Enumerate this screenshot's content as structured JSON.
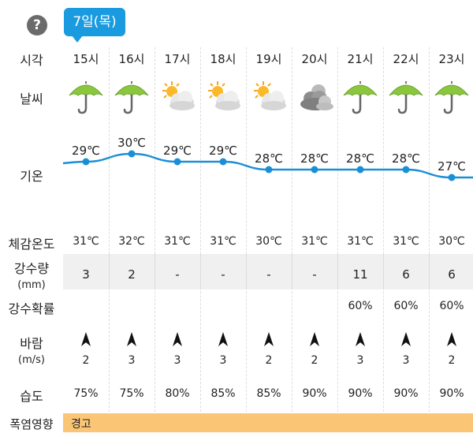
{
  "help_icon": "?",
  "date_label": "7일(목)",
  "row_labels": {
    "hour": "시각",
    "weather": "날씨",
    "temp": "기온",
    "feels": "체감온도",
    "precip": "강수량",
    "precip_unit": "(mm)",
    "precip_prob": "강수확률",
    "wind": "바람",
    "wind_unit": "(m/s)",
    "humidity": "습도",
    "heat": "폭염영향"
  },
  "heat_warning": "경고",
  "columns": [
    {
      "hour": "15시",
      "weather": "umbrella-icon",
      "temp": 29,
      "temp_label": "29℃",
      "feels": "31℃",
      "precip": "3",
      "prob": "",
      "wind": "2",
      "humidity": "75%"
    },
    {
      "hour": "16시",
      "weather": "umbrella-icon",
      "temp": 30,
      "temp_label": "30℃",
      "feels": "32℃",
      "precip": "2",
      "prob": "",
      "wind": "3",
      "humidity": "75%"
    },
    {
      "hour": "17시",
      "weather": "sun-cloud-icon",
      "temp": 29,
      "temp_label": "29℃",
      "feels": "31℃",
      "precip": "-",
      "prob": "",
      "wind": "3",
      "humidity": "80%"
    },
    {
      "hour": "18시",
      "weather": "sun-cloud-icon",
      "temp": 29,
      "temp_label": "29℃",
      "feels": "31℃",
      "precip": "-",
      "prob": "",
      "wind": "3",
      "humidity": "85%"
    },
    {
      "hour": "19시",
      "weather": "sun-cloud-icon",
      "temp": 28,
      "temp_label": "28℃",
      "feels": "30℃",
      "precip": "-",
      "prob": "",
      "wind": "2",
      "humidity": "85%"
    },
    {
      "hour": "20시",
      "weather": "cloudy-icon",
      "temp": 28,
      "temp_label": "28℃",
      "feels": "31℃",
      "precip": "-",
      "prob": "",
      "wind": "2",
      "humidity": "90%"
    },
    {
      "hour": "21시",
      "weather": "umbrella-icon",
      "temp": 28,
      "temp_label": "28℃",
      "feels": "31℃",
      "precip": "11",
      "prob": "60%",
      "wind": "3",
      "humidity": "90%"
    },
    {
      "hour": "22시",
      "weather": "umbrella-icon",
      "temp": 28,
      "temp_label": "28℃",
      "feels": "31℃",
      "precip": "6",
      "prob": "60%",
      "wind": "3",
      "humidity": "90%"
    },
    {
      "hour": "23시",
      "weather": "umbrella-icon",
      "temp": 27,
      "temp_label": "27℃",
      "feels": "30℃",
      "precip": "6",
      "prob": "60%",
      "wind": "2",
      "humidity": "90%"
    }
  ],
  "colors": {
    "badge": "#1a9be0",
    "line": "#1a8fd6",
    "heat_band": "#fbc576",
    "umbrella": "#8cc63f"
  }
}
